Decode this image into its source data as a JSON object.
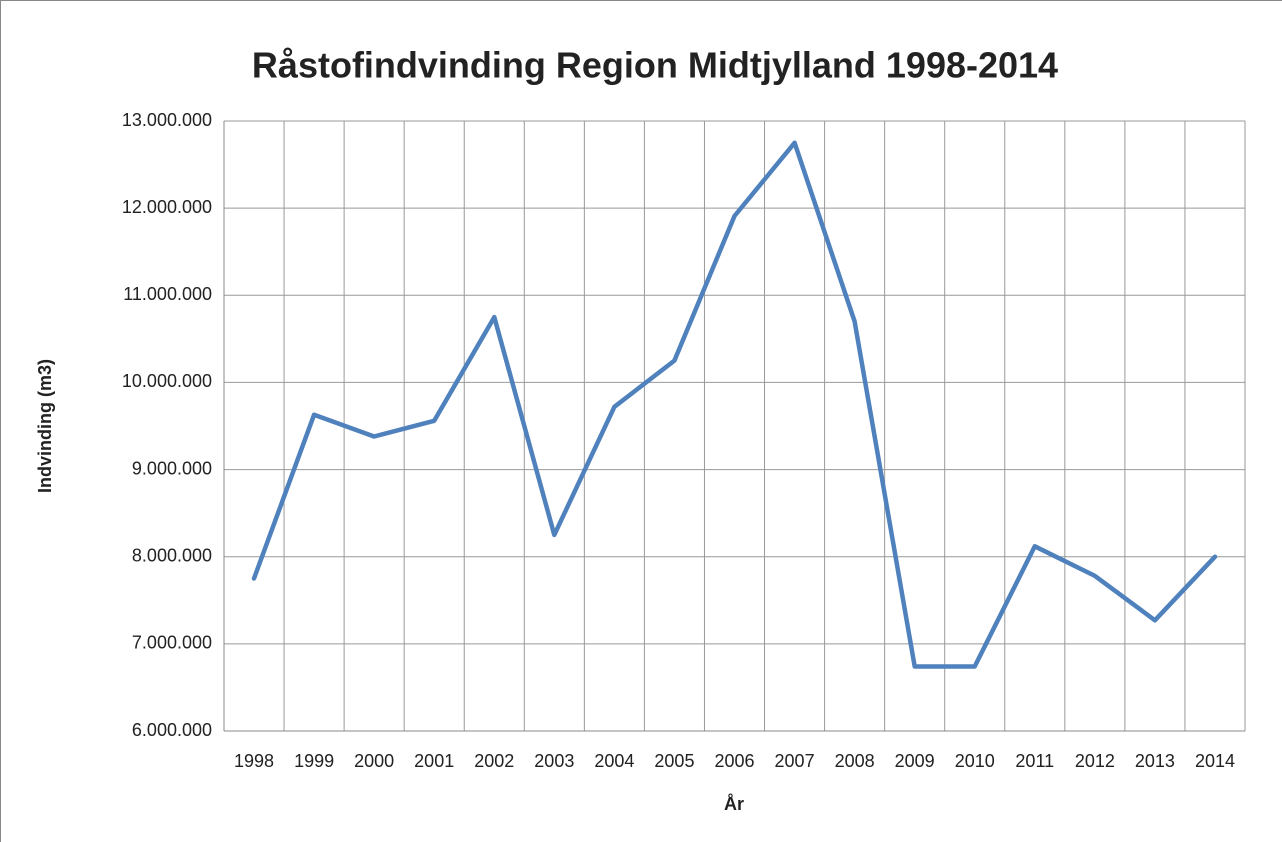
{
  "chart_data": {
    "type": "line",
    "title": "Råstofindvinding Region Midtjylland 1998-2014",
    "x_label": "År",
    "y_label": "Indvinding (m3)",
    "categories": [
      "1998",
      "1999",
      "2000",
      "2001",
      "2002",
      "2003",
      "2004",
      "2005",
      "2006",
      "2007",
      "2008",
      "2009",
      "2010",
      "2011",
      "2012",
      "2013",
      "2014"
    ],
    "values": [
      7750000,
      9630000,
      9380000,
      9560000,
      10750000,
      8250000,
      9720000,
      10250000,
      11910000,
      12750000,
      10700000,
      6740000,
      6740000,
      8120000,
      7780000,
      7270000,
      8000000
    ],
    "color": "#4f81bd",
    "ylim": [
      6000000,
      13000000
    ],
    "yticks": [
      {
        "value": 6000000,
        "label": "6.000.000"
      },
      {
        "value": 7000000,
        "label": "7.000.000"
      },
      {
        "value": 8000000,
        "label": "8.000.000"
      },
      {
        "value": 9000000,
        "label": "9.000.000"
      },
      {
        "value": 10000000,
        "label": "10.000.000"
      },
      {
        "value": 11000000,
        "label": "11.000.000"
      },
      {
        "value": 12000000,
        "label": "12.000.000"
      },
      {
        "value": 13000000,
        "label": "13.000.000"
      }
    ],
    "grid": true
  }
}
